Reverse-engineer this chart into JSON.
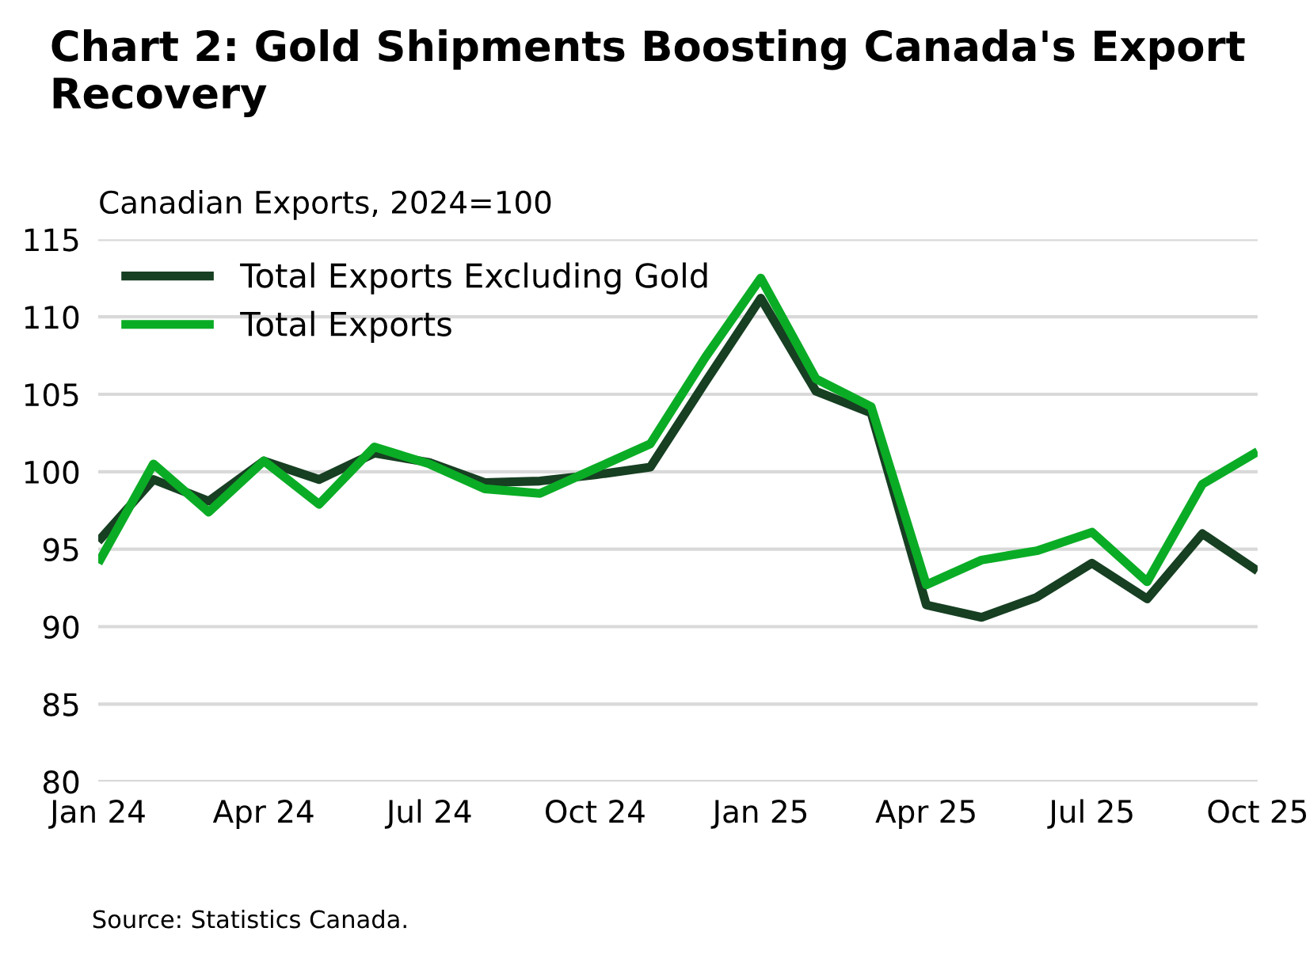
{
  "chart_data": {
    "type": "line",
    "title": "Chart 2: Gold Shipments Boosting Canada's Export Recovery",
    "ylabel": "Canadian Exports, 2024=100",
    "categories": [
      "Jan 24",
      null,
      null,
      "Apr 24",
      null,
      null,
      "Jul 24",
      null,
      null,
      "Oct 24",
      null,
      null,
      "Jan 25",
      null,
      null,
      "Apr 25",
      null,
      null,
      "Jul 25",
      null,
      null,
      "Oct 25"
    ],
    "series": [
      {
        "name": "Total Exports Excluding Gold",
        "color": "#173f22",
        "values": [
          95.5,
          99.5,
          98.1,
          100.7,
          99.5,
          101.2,
          100.6,
          99.3,
          99.4,
          99.8,
          100.3,
          105.8,
          111.2,
          105.2,
          103.8,
          91.4,
          90.6,
          91.9,
          94.1,
          91.8,
          96.0,
          93.6
        ]
      },
      {
        "name": "Total Exports",
        "color": "#0aac25",
        "values": [
          94.1,
          100.5,
          97.4,
          100.7,
          97.9,
          101.6,
          100.5,
          98.9,
          98.6,
          100.2,
          101.8,
          107.4,
          112.5,
          106.0,
          104.2,
          92.7,
          94.3,
          94.9,
          96.1,
          92.9,
          99.2,
          101.3
        ]
      }
    ],
    "ylim": [
      80,
      115
    ],
    "yticks": [
      80,
      85,
      90,
      95,
      100,
      105,
      110,
      115
    ],
    "grid": "y",
    "legend": "top left",
    "marker": "none",
    "line_style": "solid",
    "annotations": [
      "Source: Statistics Canada."
    ]
  }
}
